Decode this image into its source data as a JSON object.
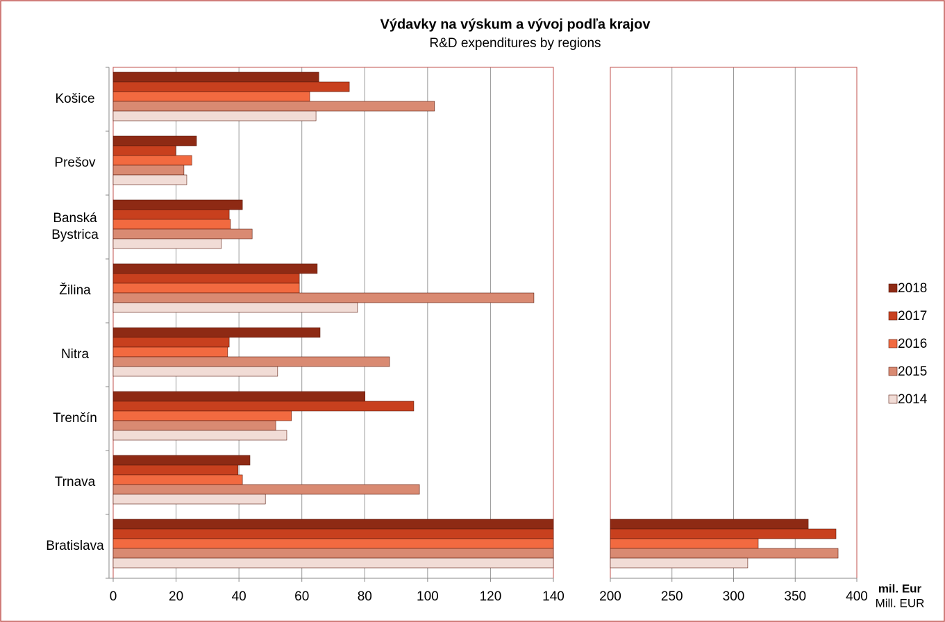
{
  "chart_data": {
    "type": "broken-barh",
    "title": "Výdavky na výskum a vývoj podľa krajov",
    "subtitle": "R&D expenditures by regions",
    "x_label": "mil. Eur",
    "x_label_en": "Mill. EUR",
    "categories": [
      "Košice",
      "Prešov",
      "Banská Bystrica",
      "Žilina",
      "Nitra",
      "Trenčín",
      "Trnava",
      "Bratislava"
    ],
    "series": [
      {
        "name": "2018",
        "color": "#8e2a14",
        "values": [
          65.4,
          26.5,
          41.1,
          64.9,
          65.8,
          80.1,
          43.5,
          360.6
        ]
      },
      {
        "name": "2017",
        "color": "#c8401e",
        "values": [
          75.1,
          19.9,
          36.9,
          59.2,
          36.9,
          95.6,
          39.7,
          383.1
        ]
      },
      {
        "name": "2016",
        "color": "#f26a40",
        "values": [
          62.5,
          25.0,
          37.3,
          59.2,
          36.4,
          56.7,
          41.1,
          320.0
        ]
      },
      {
        "name": "2015",
        "color": "#d98a72",
        "values": [
          102.2,
          22.5,
          44.2,
          133.8,
          87.9,
          51.7,
          97.4,
          384.8
        ]
      },
      {
        "name": "2014",
        "color": "#f1dcd6",
        "values": [
          64.5,
          23.4,
          34.4,
          77.7,
          52.3,
          55.2,
          48.4,
          311.5
        ]
      }
    ],
    "xlim": [
      0,
      140
    ],
    "xticks": [
      0,
      20,
      40,
      60,
      80,
      100,
      120,
      140
    ],
    "x2lim": [
      200,
      400
    ],
    "x2ticks": [
      200,
      250,
      300,
      350,
      400
    ],
    "grid": true,
    "legend": "right"
  }
}
